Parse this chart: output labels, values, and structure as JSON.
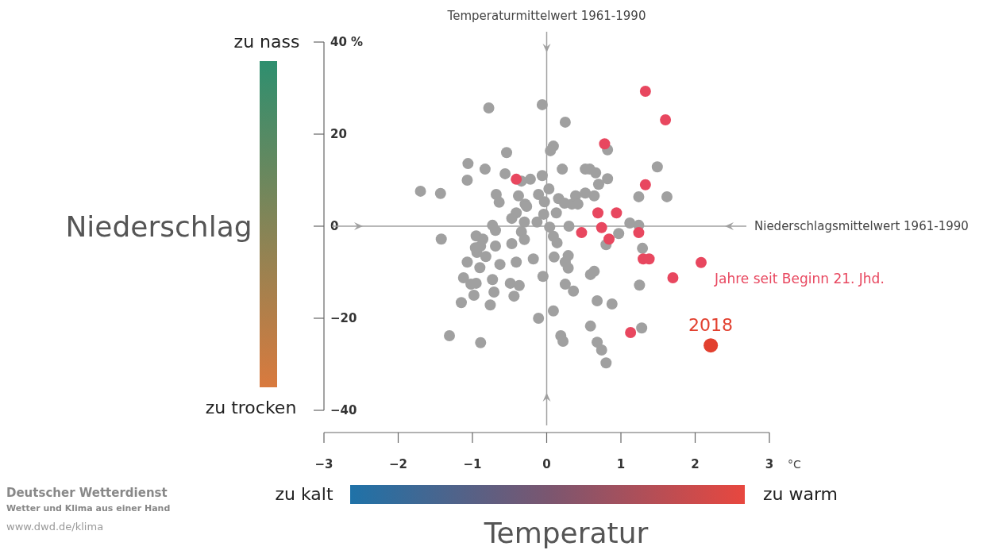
{
  "chart_data": {
    "type": "scatter",
    "xlabel": "Temperatur",
    "ylabel": "Niederschlag",
    "xlim": [
      -3,
      3
    ],
    "xticks": [
      {
        "value": -3,
        "label": "−3"
      },
      {
        "value": -2,
        "label": "−2"
      },
      {
        "value": -1,
        "label": "−1"
      },
      0,
      1,
      2,
      3
    ],
    "ylim": [
      -40,
      40
    ],
    "yticks": [
      {
        "value": 40,
        "label": "40 %"
      },
      20,
      0,
      {
        "value": -20,
        "label": "−20"
      },
      {
        "value": -40,
        "label": "−40"
      }
    ],
    "grid": false,
    "marker": "circle",
    "ref_lines": [
      {
        "axis": "x",
        "value": 0,
        "label": "Temperaturmittelwert 1961-1990",
        "color": "#a0a0a0"
      },
      {
        "axis": "y",
        "value": 0,
        "label": "Niederschlagsmittelwert 1961-1990",
        "color": "#a0a0a0"
      }
    ],
    "annotations": [
      "zu nass",
      "zu trocken",
      "zu kalt",
      "zu warm",
      "°C",
      "Deutscher Wetterdienst",
      "Wetter und Klima aus einer Hand",
      "www.dwd.de/klima"
    ],
    "series": [
      {
        "color": "#a0a0a0",
        "x": [
          -0.78,
          -0.06,
          0.25,
          0.09,
          0.05,
          -0.54,
          -1.06,
          -0.83,
          -1.07,
          -0.56,
          -0.34,
          -1.43,
          -1.7,
          -0.68,
          -0.06,
          0.21,
          0.52,
          0.58,
          0.82,
          0.7,
          0.64,
          0.39,
          0.03,
          0.16,
          0.34,
          0.13,
          0.24,
          -0.64,
          -0.38,
          -0.29,
          -0.03,
          -0.41,
          -0.3,
          -0.13,
          -0.34,
          0.04,
          0.3,
          1.12,
          1.24,
          0.97,
          1.29,
          0.8,
          0.09,
          0.14,
          -0.04,
          -0.73,
          -0.69,
          -0.95,
          -0.86,
          -0.89,
          -0.82,
          -0.69,
          -0.94,
          -1.07,
          -0.63,
          -0.47,
          -0.3,
          -0.18,
          -0.05,
          0.25,
          0.29,
          0.1,
          -1.42,
          -1.12,
          -0.95,
          -0.73,
          -0.49,
          -0.37,
          -0.44,
          -0.71,
          -0.76,
          -0.98,
          -1.15,
          0.64,
          0.68,
          0.88,
          0.59,
          1.25,
          0.25,
          0.09,
          -0.11,
          0.36,
          0.19,
          0.22,
          0.68,
          0.74,
          0.8,
          -1.31,
          -0.89,
          1.28,
          0.59,
          1.49,
          1.62,
          1.24,
          -1.02,
          -0.96,
          0.29,
          -0.41,
          -0.9,
          0.82,
          0.66,
          0.42,
          0.52,
          -0.22,
          -0.11,
          -0.47,
          -0.27
        ],
        "values": [
          25.7,
          26.4,
          22.6,
          17.4,
          16.4,
          16,
          13.6,
          12.4,
          10,
          11.4,
          9.8,
          7.1,
          7.6,
          6.9,
          11,
          12.4,
          12.4,
          12.4,
          10.3,
          9.1,
          6.6,
          6.6,
          8.1,
          6,
          4.8,
          2.9,
          5,
          5.2,
          6.6,
          4.8,
          5.3,
          2.9,
          0.9,
          0.9,
          -1.2,
          -0.2,
          0,
          0.7,
          0.2,
          -1.6,
          -4.8,
          -4,
          -2.2,
          -3.6,
          2.6,
          0.2,
          -0.9,
          -2.1,
          -2.8,
          -4.3,
          -6.6,
          -4.3,
          -5.7,
          -7.8,
          -8.3,
          -3.8,
          -2.9,
          -7.1,
          -10.9,
          -7.8,
          -6.4,
          -6.7,
          -2.8,
          -11.2,
          -12.4,
          -11.6,
          -12.4,
          -12.9,
          -15.2,
          -14.3,
          -17.1,
          -15,
          -16.6,
          -9.8,
          -16.2,
          -16.9,
          -21.7,
          -12.8,
          -12.6,
          -18.4,
          -20,
          -14.1,
          -23.8,
          -25,
          -25.2,
          -26.9,
          -29.7,
          -23.8,
          -25.3,
          -22.1,
          -10.5,
          12.9,
          6.4,
          6.4,
          -12.6,
          -4.7,
          -9.1,
          -7.8,
          -9,
          16.6,
          11.6,
          4.8,
          7.2,
          10.2,
          6.9,
          1.7,
          4.3
        ]
      },
      {
        "name": "Jahre seit Beginn 21. Jhd.",
        "color": "#e8475f",
        "x": [
          1.33,
          1.6,
          0.78,
          -0.41,
          1.33,
          0.69,
          0.94,
          0.47,
          0.74,
          0.84,
          1.24,
          1.3,
          1.38,
          2.08,
          1.7,
          1.13
        ],
        "values": [
          29.3,
          23.1,
          17.9,
          10.2,
          9,
          2.9,
          2.9,
          -1.4,
          -0.3,
          -2.8,
          -1.4,
          -7.1,
          -7.1,
          -7.9,
          -11.2,
          -23.1
        ]
      },
      {
        "name": "2018",
        "color": "#e2402f",
        "x": [
          2.21
        ],
        "values": [
          -25.9
        ]
      }
    ]
  }
}
